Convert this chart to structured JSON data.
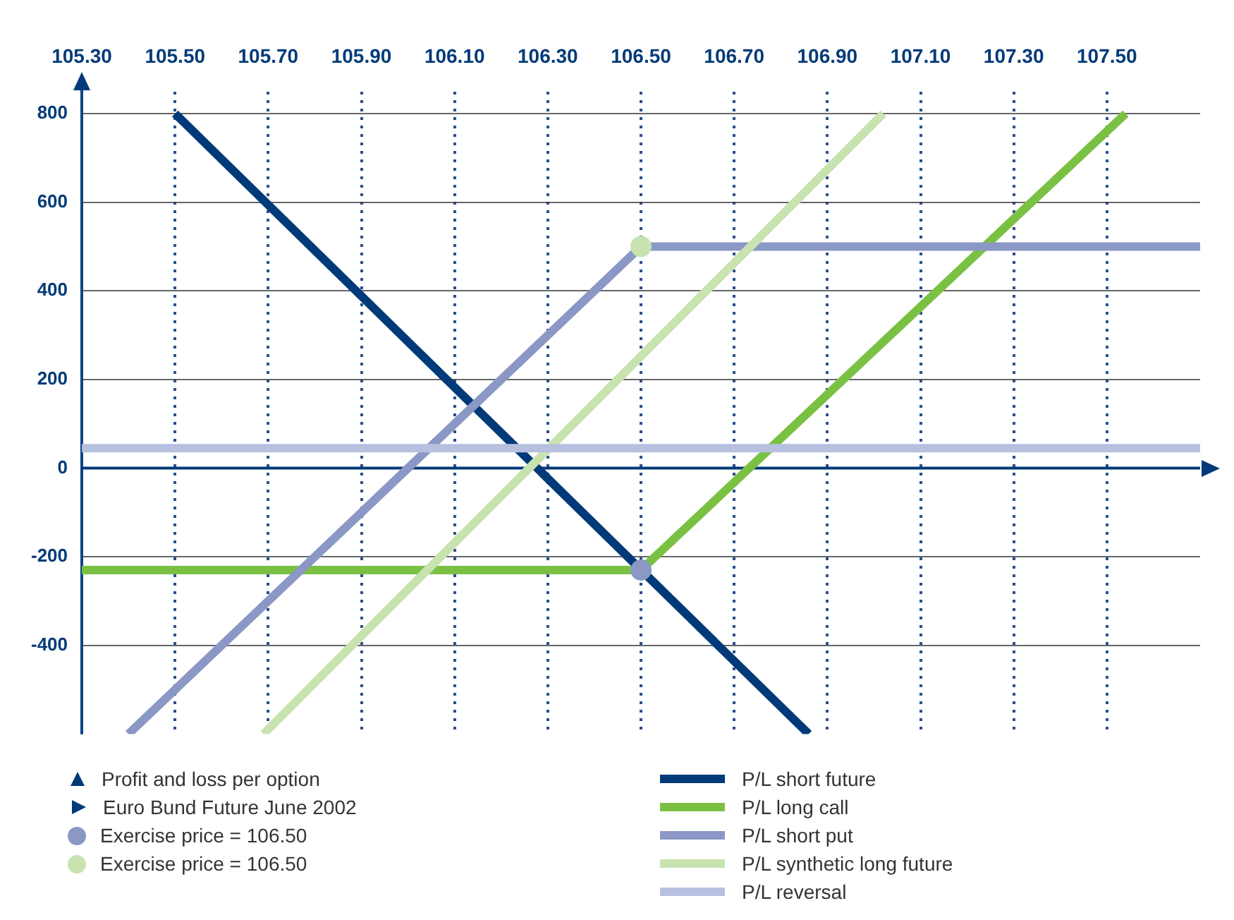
{
  "chart_data": {
    "type": "line",
    "annotations": [
      "Profit and loss per option",
      "Euro Bund Future June 2002"
    ],
    "xlim": [
      105.3,
      107.7
    ],
    "ylim": [
      -600,
      850
    ],
    "xticks": [
      {
        "value": 105.3,
        "label": "105.30"
      },
      {
        "value": 105.5,
        "label": "105.50"
      },
      {
        "value": 105.7,
        "label": "105.70"
      },
      {
        "value": 105.9,
        "label": "105.90"
      },
      {
        "value": 106.1,
        "label": "106.10"
      },
      {
        "value": 106.3,
        "label": "106.30"
      },
      {
        "value": 106.5,
        "label": "106.50"
      },
      {
        "value": 106.7,
        "label": "106.70"
      },
      {
        "value": 106.9,
        "label": "106.90"
      },
      {
        "value": 107.1,
        "label": "107.10"
      },
      {
        "value": 107.3,
        "label": "107.30"
      },
      {
        "value": 107.5,
        "label": "107.50"
      }
    ],
    "yticks": [
      -400,
      -200,
      0,
      200,
      400,
      600,
      800
    ],
    "ref_lines": [
      {
        "axis": "y",
        "value": 0,
        "color": "#003a78"
      }
    ],
    "grid": true,
    "legend": "bottom",
    "marker": "none",
    "line_style": "solid",
    "series": [
      {
        "name": "P/L short future",
        "color": "#003a78",
        "x": [
          105.5,
          106.86
        ],
        "values": [
          800,
          -600
        ]
      },
      {
        "name": "P/L long call",
        "color": "#7ac143",
        "x": [
          105.3,
          106.5,
          107.54
        ],
        "values": [
          -230,
          -230,
          800
        ]
      },
      {
        "name": "P/L short put",
        "color": "#8b97c4",
        "x": [
          105.4,
          106.5,
          107.7
        ],
        "values": [
          -600,
          500,
          500
        ]
      },
      {
        "name": "P/L synthetic long future",
        "color": "#c8e3b0",
        "x": [
          105.69,
          107.02
        ],
        "values": [
          -600,
          800
        ]
      },
      {
        "name": "P/L reversal",
        "color": "#b8c0e0",
        "x": [
          105.3,
          107.7
        ],
        "values": [
          45,
          45
        ]
      },
      {
        "name": "Exercise price = 106.50",
        "type": "scatter",
        "marker": "circle",
        "color": "#8b97c4",
        "x": [
          106.5
        ],
        "values": [
          -230
        ]
      },
      {
        "name": "Exercise price = 106.50",
        "type": "scatter",
        "marker": "circle",
        "color": "#c8e3b0",
        "x": [
          106.5
        ],
        "values": [
          500
        ]
      }
    ]
  }
}
